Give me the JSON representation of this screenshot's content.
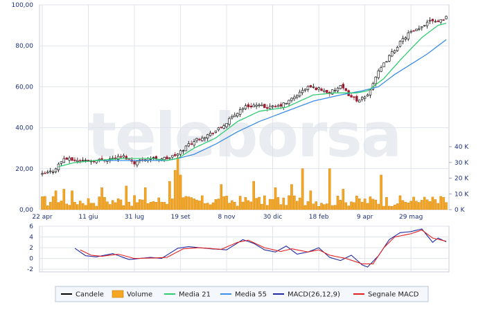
{
  "watermark": "teleborsa",
  "colors": {
    "candle_up": "#000000",
    "candle_down": "#9b1b2e",
    "volume": "#f5a623",
    "volume_edge": "#c77a00",
    "ma21": "#2ecc71",
    "ma55": "#3a8ee6",
    "macd": "#1f2aa0",
    "signal": "#e02020",
    "grid": "#dfe3ea",
    "axis_text": "#1a2f7a",
    "legend_border": "#b8c4d8",
    "legend_bg": "#f4f7fc"
  },
  "legend": [
    {
      "label": "Candele",
      "color": "#000000",
      "kind": "line"
    },
    {
      "label": "Volume",
      "color": "#f5a623",
      "kind": "box"
    },
    {
      "label": "Media 21",
      "color": "#2ecc71",
      "kind": "line"
    },
    {
      "label": "Media 55",
      "color": "#3a8ee6",
      "kind": "line"
    },
    {
      "label": "MACD(26,12,9)",
      "color": "#1f2aa0",
      "kind": "line"
    },
    {
      "label": "Segnale MACD",
      "color": "#e02020",
      "kind": "line"
    }
  ],
  "chart_data": [
    {
      "type": "line",
      "panel": "price",
      "ylim": [
        0,
        100
      ],
      "y_ticks": [
        "0,00",
        "20,00",
        "40,00",
        "60,00",
        "80,00",
        "100,00"
      ],
      "y_tick_values": [
        0,
        20,
        40,
        60,
        80,
        100
      ],
      "x_ticks": [
        "22 apr",
        "11 giu",
        "31 lug",
        "19 set",
        "8 nov",
        "30 dic",
        "18 feb",
        "9 apr",
        "29 mag"
      ],
      "x_tick_index": [
        0,
        17,
        34,
        51,
        68,
        85,
        102,
        119,
        136
      ],
      "n_periods": 150,
      "close_anchors": [
        [
          0,
          17
        ],
        [
          4,
          19
        ],
        [
          8,
          25
        ],
        [
          12,
          24
        ],
        [
          16,
          24
        ],
        [
          20,
          24
        ],
        [
          26,
          25
        ],
        [
          30,
          26
        ],
        [
          34,
          23
        ],
        [
          38,
          25
        ],
        [
          42,
          25
        ],
        [
          46,
          25
        ],
        [
          50,
          27
        ],
        [
          54,
          32
        ],
        [
          58,
          35
        ],
        [
          62,
          37
        ],
        [
          66,
          40
        ],
        [
          70,
          45
        ],
        [
          74,
          50
        ],
        [
          78,
          51
        ],
        [
          82,
          50
        ],
        [
          86,
          50
        ],
        [
          90,
          52
        ],
        [
          94,
          56
        ],
        [
          98,
          60
        ],
        [
          102,
          59
        ],
        [
          106,
          57
        ],
        [
          110,
          60
        ],
        [
          114,
          55
        ],
        [
          117,
          53
        ],
        [
          120,
          56
        ],
        [
          123,
          65
        ],
        [
          127,
          73
        ],
        [
          131,
          80
        ],
        [
          135,
          86
        ],
        [
          139,
          88
        ],
        [
          143,
          93
        ],
        [
          146,
          92
        ],
        [
          149,
          94
        ]
      ],
      "ma21_anchors": [
        [
          6,
          21
        ],
        [
          12,
          23
        ],
        [
          20,
          24
        ],
        [
          30,
          25
        ],
        [
          40,
          25
        ],
        [
          46,
          24
        ],
        [
          50,
          25
        ],
        [
          56,
          30
        ],
        [
          64,
          35
        ],
        [
          72,
          43
        ],
        [
          80,
          48
        ],
        [
          90,
          50
        ],
        [
          100,
          56
        ],
        [
          108,
          57
        ],
        [
          116,
          57
        ],
        [
          120,
          58
        ],
        [
          126,
          64
        ],
        [
          132,
          73
        ],
        [
          140,
          84
        ],
        [
          146,
          90
        ],
        [
          149,
          91
        ]
      ],
      "ma55_anchors": [
        [
          20,
          24
        ],
        [
          30,
          24
        ],
        [
          40,
          24
        ],
        [
          46,
          24
        ],
        [
          50,
          25
        ],
        [
          56,
          27
        ],
        [
          64,
          32
        ],
        [
          72,
          38
        ],
        [
          80,
          43
        ],
        [
          90,
          48
        ],
        [
          100,
          53
        ],
        [
          110,
          56
        ],
        [
          118,
          58
        ],
        [
          124,
          60
        ],
        [
          130,
          66
        ],
        [
          136,
          71
        ],
        [
          142,
          76
        ],
        [
          146,
          80
        ],
        [
          149,
          83
        ]
      ]
    },
    {
      "type": "bar",
      "panel": "volume",
      "ylim": [
        0,
        40000
      ],
      "y_ticks": [
        "0 K",
        "10 K",
        "20 K",
        "30 K",
        "40 K"
      ],
      "y_tick_values": [
        0,
        10000,
        20000,
        30000,
        40000
      ],
      "base_level": 5000,
      "spikes": [
        [
          5,
          12000
        ],
        [
          8,
          13000
        ],
        [
          11,
          12000
        ],
        [
          22,
          14000
        ],
        [
          31,
          15000
        ],
        [
          38,
          14000
        ],
        [
          47,
          18000
        ],
        [
          49,
          25000
        ],
        [
          50,
          33000
        ],
        [
          51,
          22000
        ],
        [
          66,
          16000
        ],
        [
          78,
          18000
        ],
        [
          86,
          14000
        ],
        [
          92,
          16000
        ],
        [
          96,
          26000
        ],
        [
          99,
          12000
        ],
        [
          106,
          26000
        ],
        [
          111,
          13000
        ],
        [
          125,
          22000
        ],
        [
          140,
          6000
        ],
        [
          146,
          4000
        ]
      ]
    },
    {
      "type": "line",
      "panel": "macd",
      "ylim": [
        -2.5,
        6
      ],
      "y_ticks": [
        "-2",
        "0",
        "2",
        "4",
        "6"
      ],
      "y_tick_values": [
        -2,
        0,
        2,
        4,
        6
      ],
      "x_start_index": 12,
      "series": [
        {
          "name": "MACD(26,12,9)",
          "anchors": [
            [
              12,
              1.9
            ],
            [
              16,
              0.5
            ],
            [
              20,
              0.3
            ],
            [
              26,
              0.9
            ],
            [
              32,
              -0.2
            ],
            [
              40,
              0.2
            ],
            [
              44,
              0.0
            ],
            [
              50,
              1.9
            ],
            [
              54,
              2.2
            ],
            [
              62,
              1.8
            ],
            [
              68,
              1.6
            ],
            [
              74,
              3.5
            ],
            [
              78,
              2.8
            ],
            [
              82,
              1.6
            ],
            [
              86,
              1.2
            ],
            [
              90,
              2.3
            ],
            [
              94,
              0.8
            ],
            [
              98,
              1.2
            ],
            [
              102,
              2.0
            ],
            [
              106,
              0.2
            ],
            [
              110,
              -0.4
            ],
            [
              114,
              0.6
            ],
            [
              118,
              -1.2
            ],
            [
              120,
              -1.6
            ],
            [
              124,
              0.5
            ],
            [
              128,
              3.5
            ],
            [
              132,
              4.8
            ],
            [
              136,
              5.0
            ],
            [
              140,
              5.5
            ],
            [
              144,
              3.0
            ],
            [
              146,
              3.8
            ],
            [
              149,
              3.1
            ]
          ]
        },
        {
          "name": "Segnale MACD",
          "anchors": [
            [
              14,
              1.6
            ],
            [
              18,
              0.6
            ],
            [
              22,
              0.4
            ],
            [
              28,
              0.8
            ],
            [
              34,
              0.0
            ],
            [
              42,
              0.1
            ],
            [
              46,
              0.2
            ],
            [
              52,
              1.8
            ],
            [
              58,
              2.0
            ],
            [
              66,
              1.7
            ],
            [
              72,
              3.0
            ],
            [
              76,
              3.4
            ],
            [
              82,
              2.0
            ],
            [
              88,
              1.3
            ],
            [
              92,
              1.8
            ],
            [
              98,
              1.2
            ],
            [
              102,
              1.6
            ],
            [
              106,
              0.6
            ],
            [
              112,
              0.0
            ],
            [
              118,
              -1.0
            ],
            [
              122,
              -1.0
            ],
            [
              126,
              2.0
            ],
            [
              130,
              4.0
            ],
            [
              136,
              4.6
            ],
            [
              140,
              5.3
            ],
            [
              144,
              3.8
            ],
            [
              149,
              3.2
            ]
          ]
        }
      ]
    }
  ]
}
